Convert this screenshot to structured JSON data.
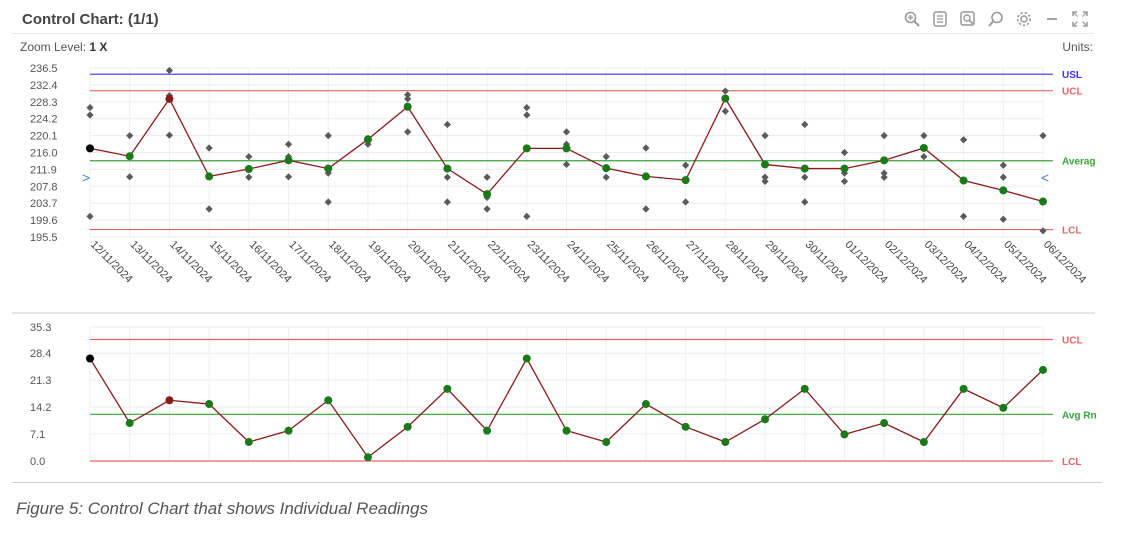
{
  "header": {
    "title": "Control Chart: (1/1)",
    "zoom_label": "Zoom Level:",
    "zoom_value": "1 X",
    "units_label": "Units:"
  },
  "toolbar": {
    "icons": [
      "zoom-in-icon",
      "list-icon",
      "zoom-region-icon",
      "search-icon",
      "gear-icon",
      "minimize-icon",
      "fullscreen-icon"
    ]
  },
  "caption": "Figure 5: Control Chart that shows Individual Readings",
  "colors": {
    "usl": "#3333ff",
    "ucl": "#e06666",
    "lcl": "#e06666",
    "average": "#3aa33a",
    "line": "#8b1a1a",
    "point": "#1a7a1a",
    "raw": "#5a5a5a"
  },
  "chart_data": [
    {
      "type": "line",
      "name": "individuals",
      "ylim": [
        195.5,
        236.5
      ],
      "yticks": [
        "236.5",
        "232.4",
        "228.3",
        "224.2",
        "220.1",
        "216.0",
        "211.9",
        "207.8",
        "203.7",
        "199.6",
        "195.5"
      ],
      "categories": [
        "12/11/2024",
        "13/11/2024",
        "14/11/2024",
        "15/11/2024",
        "16/11/2024",
        "17/11/2024",
        "18/11/2024",
        "19/11/2024",
        "20/11/2024",
        "21/11/2024",
        "22/11/2024",
        "23/11/2024",
        "24/11/2024",
        "25/11/2024",
        "26/11/2024",
        "27/11/2024",
        "28/11/2024",
        "29/11/2024",
        "30/11/2024",
        "01/12/2024",
        "02/12/2024",
        "03/12/2024",
        "04/12/2024",
        "05/12/2024",
        "06/12/2024"
      ],
      "values": [
        217.0,
        215.1,
        229.0,
        210.2,
        212.0,
        214.1,
        212.1,
        219.2,
        227.1,
        212.1,
        205.9,
        217.0,
        217.0,
        212.2,
        210.2,
        209.3,
        229.1,
        213.1,
        212.1,
        212.1,
        214.1,
        217.1,
        209.2,
        206.8,
        204.1
      ],
      "point_status": [
        "first",
        "ok",
        "flag",
        "ok",
        "ok",
        "ok",
        "ok",
        "ok",
        "ok",
        "ok",
        "ok",
        "ok",
        "ok",
        "ok",
        "ok",
        "ok",
        "ok",
        "ok",
        "ok",
        "ok",
        "ok",
        "ok",
        "ok",
        "ok",
        "ok"
      ],
      "readings": [
        [
          226.9,
          225.1,
          200.5
        ],
        [
          220.1,
          210.1
        ],
        [
          235.9,
          229.8,
          220.2
        ],
        [
          217.1,
          202.3
        ],
        [
          215.0,
          210.0
        ],
        [
          218.0,
          215.0,
          210.1
        ],
        [
          220.1,
          211.0,
          204.0
        ],
        [
          219.0,
          218.0
        ],
        [
          230.0,
          229.0,
          221.0
        ],
        [
          222.8,
          210.0,
          204.0
        ],
        [
          210.0,
          205.1,
          202.3
        ],
        [
          226.9,
          225.1,
          200.5
        ],
        [
          221.0,
          218.0,
          213.1
        ],
        [
          215.0,
          210.0
        ],
        [
          217.1,
          202.3
        ],
        [
          212.9,
          204.0
        ],
        [
          230.9,
          226.0
        ],
        [
          220.1,
          210.0,
          209.0
        ],
        [
          222.8,
          210.0,
          204.0
        ],
        [
          216.0,
          211.0,
          209.0
        ],
        [
          220.1,
          211.0,
          210.0
        ],
        [
          220.1,
          215.0
        ],
        [
          219.1,
          200.5
        ],
        [
          212.9,
          210.0,
          199.8
        ],
        [
          220.1,
          197.0
        ]
      ],
      "limits": [
        {
          "label": "USL",
          "value": 235.0,
          "color_key": "usl"
        },
        {
          "label": "UCL",
          "value": 231.0,
          "color_key": "ucl"
        },
        {
          "label": "Averag",
          "value": 214.0,
          "color_key": "average"
        },
        {
          "label": "LCL",
          "value": 197.3,
          "color_key": "lcl"
        }
      ],
      "average_markers": [
        ">",
        "<"
      ]
    },
    {
      "type": "line",
      "name": "moving-range",
      "ylim": [
        0.0,
        35.3
      ],
      "yticks": [
        "35.3",
        "28.4",
        "21.3",
        "14.2",
        "7.1",
        "0.0"
      ],
      "values": [
        27.0,
        10.0,
        16.0,
        15.0,
        5.0,
        8.0,
        16.0,
        1.0,
        9.0,
        19.0,
        8.0,
        27.0,
        8.0,
        5.0,
        15.0,
        9.0,
        5.0,
        11.0,
        19.0,
        7.0,
        10.0,
        5.0,
        19.0,
        14.0,
        24.0
      ],
      "point_status": [
        "first",
        "ok",
        "flag",
        "ok",
        "ok",
        "ok",
        "ok",
        "ok",
        "ok",
        "ok",
        "ok",
        "ok",
        "ok",
        "ok",
        "ok",
        "ok",
        "ok",
        "ok",
        "ok",
        "ok",
        "ok",
        "ok",
        "ok",
        "ok",
        "ok"
      ],
      "limits": [
        {
          "label": "UCL",
          "value": 32.0,
          "color_key": "ucl"
        },
        {
          "label": "Avg Rn",
          "value": 12.3,
          "color_key": "average"
        },
        {
          "label": "LCL",
          "value": 0.0,
          "color_key": "lcl"
        }
      ]
    }
  ]
}
